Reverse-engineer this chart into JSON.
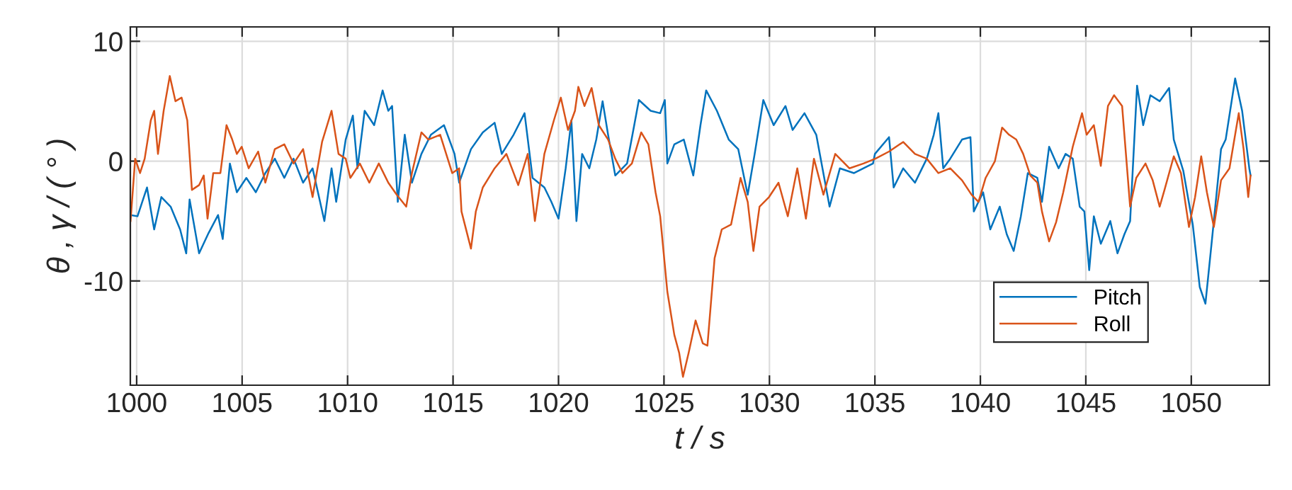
{
  "chart_data": {
    "type": "line",
    "xlabel": "t / s",
    "ylabel": "θ , γ / ( ° )",
    "xlim": [
      999.7,
      1053.7
    ],
    "ylim": [
      -18.7,
      11.2
    ],
    "xticks": [
      1000,
      1005,
      1010,
      1015,
      1020,
      1025,
      1030,
      1035,
      1040,
      1045,
      1050
    ],
    "yticks": [
      -10,
      0,
      10
    ],
    "grid": true,
    "legend": "bottom right",
    "marker": "none",
    "line_style": "solid",
    "series": [
      {
        "name": "Pitch",
        "color": "#0072bd",
        "x": [
          999.71,
          1000.04,
          1000.49,
          1000.83,
          1001.17,
          1001.61,
          1002.06,
          1002.35,
          1002.51,
          1002.96,
          1003.41,
          1003.86,
          1004.08,
          1004.42,
          1004.75,
          1005.2,
          1005.65,
          1006.1,
          1006.55,
          1007.0,
          1007.44,
          1007.89,
          1008.34,
          1008.9,
          1009.24,
          1009.46,
          1009.91,
          1010.25,
          1010.47,
          1010.81,
          1011.26,
          1011.66,
          1011.93,
          1012.11,
          1012.38,
          1012.71,
          1013.05,
          1013.5,
          1013.95,
          1014.57,
          1015.07,
          1015.29,
          1015.85,
          1016.41,
          1016.97,
          1017.31,
          1017.87,
          1018.39,
          1018.77,
          1019.33,
          1019.66,
          1020.0,
          1020.34,
          1020.61,
          1020.85,
          1021.12,
          1021.46,
          1021.79,
          1022.09,
          1022.35,
          1022.69,
          1023.25,
          1023.59,
          1023.81,
          1024.37,
          1024.82,
          1025.04,
          1025.16,
          1025.49,
          1025.94,
          1026.39,
          1026.73,
          1027.0,
          1027.51,
          1028.07,
          1028.52,
          1028.97,
          1029.3,
          1029.71,
          1030.2,
          1030.76,
          1031.1,
          1031.66,
          1032.22,
          1032.85,
          1033.34,
          1034.01,
          1034.91,
          1035.0,
          1035.67,
          1035.89,
          1036.34,
          1036.9,
          1037.46,
          1037.79,
          1038.01,
          1038.24,
          1038.57,
          1039.13,
          1039.53,
          1039.69,
          1040.13,
          1040.47,
          1040.92,
          1041.25,
          1041.58,
          1041.92,
          1042.25,
          1042.7,
          1042.92,
          1043.26,
          1043.71,
          1044.04,
          1044.38,
          1044.71,
          1044.93,
          1045.16,
          1045.38,
          1045.71,
          1046.16,
          1046.5,
          1046.83,
          1047.1,
          1047.43,
          1047.72,
          1048.06,
          1048.5,
          1048.95,
          1049.17,
          1049.62,
          1050.07,
          1050.4,
          1050.67,
          1050.96,
          1051.41,
          1051.63,
          1052.08,
          1052.41,
          1052.75,
          1052.81
        ],
        "values": [
          -4.5,
          -4.6,
          -2.2,
          -5.7,
          -3.0,
          -3.8,
          -5.7,
          -7.7,
          -3.2,
          -7.7,
          -6.0,
          -4.5,
          -6.5,
          -0.2,
          -2.6,
          -1.4,
          -2.6,
          -1.0,
          0.2,
          -1.4,
          0.2,
          -1.8,
          -0.6,
          -5.0,
          -0.6,
          -3.4,
          1.8,
          3.8,
          -0.6,
          4.2,
          3.0,
          5.9,
          4.2,
          4.6,
          -3.4,
          2.2,
          -1.8,
          0.6,
          2.2,
          3.0,
          0.6,
          -1.8,
          1.0,
          2.4,
          3.2,
          0.6,
          2.2,
          4.0,
          -1.4,
          -2.2,
          -3.4,
          -4.8,
          -0.6,
          3.4,
          -5.0,
          0.6,
          -0.6,
          1.8,
          5.0,
          2.2,
          -1.2,
          -0.2,
          3.0,
          5.1,
          4.2,
          4.0,
          5.1,
          -0.2,
          1.4,
          1.8,
          -1.2,
          3.0,
          5.9,
          4.2,
          1.8,
          1.0,
          -2.8,
          0.6,
          5.1,
          3.0,
          4.6,
          2.6,
          4.0,
          2.2,
          -3.8,
          -0.6,
          -1.0,
          -0.2,
          0.6,
          2.0,
          -2.2,
          -0.6,
          -1.8,
          0.2,
          2.2,
          4.0,
          -0.6,
          0.2,
          1.8,
          2.0,
          -4.2,
          -2.6,
          -5.7,
          -3.8,
          -6.1,
          -7.5,
          -4.6,
          -1.0,
          -1.4,
          -3.4,
          1.2,
          -0.6,
          0.6,
          0.2,
          -3.8,
          -4.2,
          -9.1,
          -4.6,
          -6.9,
          -5.0,
          -7.7,
          -6.1,
          -5.0,
          6.3,
          3.0,
          5.5,
          5.0,
          6.1,
          1.8,
          -0.8,
          -5.3,
          -10.5,
          -11.9,
          -6.9,
          1.0,
          1.8,
          6.9,
          4.2,
          -0.6,
          -1.2
        ]
      },
      {
        "name": "Roll",
        "color": "#d95319",
        "x": [
          999.71,
          999.93,
          1000.16,
          1000.38,
          1000.67,
          1000.83,
          1001.01,
          1001.28,
          1001.57,
          1001.84,
          1002.13,
          1002.4,
          1002.62,
          1002.96,
          1003.18,
          1003.36,
          1003.63,
          1003.97,
          1004.26,
          1004.53,
          1004.75,
          1004.98,
          1005.31,
          1005.76,
          1006.1,
          1006.55,
          1007.0,
          1007.44,
          1007.89,
          1008.34,
          1008.79,
          1009.24,
          1009.57,
          1009.91,
          1010.13,
          1010.58,
          1011.03,
          1011.48,
          1011.93,
          1012.33,
          1012.78,
          1013.05,
          1013.5,
          1013.83,
          1014.39,
          1014.96,
          1015.29,
          1015.4,
          1015.85,
          1016.08,
          1016.41,
          1016.97,
          1017.53,
          1018.09,
          1018.54,
          1018.88,
          1019.33,
          1019.78,
          1020.11,
          1020.45,
          1020.78,
          1020.94,
          1021.23,
          1021.57,
          1021.91,
          1022.35,
          1022.69,
          1023.03,
          1023.48,
          1023.92,
          1024.26,
          1024.6,
          1024.82,
          1025.16,
          1025.49,
          1025.72,
          1025.9,
          1026.17,
          1026.5,
          1026.84,
          1027.06,
          1027.4,
          1027.74,
          1028.18,
          1028.63,
          1028.97,
          1029.24,
          1029.53,
          1029.98,
          1030.43,
          1030.87,
          1031.32,
          1031.73,
          1032.11,
          1032.56,
          1033.12,
          1033.79,
          1034.46,
          1035.02,
          1035.67,
          1036.34,
          1036.9,
          1037.46,
          1038.01,
          1038.57,
          1039.13,
          1039.58,
          1039.91,
          1040.25,
          1040.69,
          1041.03,
          1041.36,
          1041.7,
          1042.03,
          1042.37,
          1042.7,
          1042.92,
          1043.26,
          1043.59,
          1043.93,
          1044.38,
          1044.82,
          1045.04,
          1045.38,
          1045.71,
          1046.05,
          1046.34,
          1046.72,
          1047.1,
          1047.39,
          1047.83,
          1048.17,
          1048.5,
          1048.73,
          1049.17,
          1049.51,
          1049.89,
          1050.18,
          1050.47,
          1050.74,
          1051.07,
          1051.41,
          1051.81,
          1052.25,
          1052.48,
          1052.7,
          1052.81
        ],
        "values": [
          -5.0,
          0.2,
          -1.0,
          0.2,
          3.4,
          4.2,
          0.6,
          4.2,
          7.1,
          5.0,
          5.3,
          3.4,
          -2.4,
          -2.0,
          -1.2,
          -4.8,
          -1.0,
          -1.0,
          3.0,
          1.8,
          0.6,
          1.2,
          -0.6,
          0.8,
          -1.8,
          1.0,
          1.4,
          -0.2,
          1.0,
          -3.0,
          1.6,
          4.2,
          0.6,
          0.2,
          -1.4,
          -0.2,
          -1.8,
          -0.2,
          -1.8,
          -2.8,
          -3.8,
          -1.0,
          2.4,
          1.8,
          2.2,
          -1.0,
          -0.6,
          -4.2,
          -7.3,
          -4.2,
          -2.2,
          -0.6,
          0.6,
          -2.0,
          0.6,
          -5.0,
          0.6,
          3.4,
          5.3,
          2.6,
          4.2,
          6.2,
          4.6,
          6.1,
          3.0,
          1.8,
          0.2,
          -1.0,
          -0.2,
          2.4,
          1.4,
          -2.6,
          -4.6,
          -10.9,
          -14.5,
          -16.0,
          -18.0,
          -16.0,
          -13.3,
          -15.2,
          -15.4,
          -8.1,
          -5.7,
          -5.3,
          -1.4,
          -3.4,
          -7.5,
          -3.8,
          -3.0,
          -1.8,
          -4.6,
          -0.6,
          -4.8,
          0.2,
          -2.8,
          0.6,
          -0.6,
          -0.2,
          0.2,
          0.8,
          1.6,
          0.6,
          0.2,
          -1.0,
          -0.6,
          -1.6,
          -2.8,
          -3.4,
          -1.4,
          0.0,
          2.8,
          2.2,
          1.8,
          0.6,
          -1.2,
          -1.8,
          -4.2,
          -6.7,
          -5.1,
          -2.6,
          1.2,
          4.0,
          2.2,
          3.0,
          -0.4,
          4.6,
          5.5,
          4.6,
          -3.8,
          -1.4,
          -0.2,
          -1.6,
          -3.8,
          -2.4,
          0.4,
          -1.0,
          -5.5,
          -3.0,
          0.4,
          -2.6,
          -5.5,
          -1.6,
          -0.6,
          4.0,
          1.0,
          -3.0,
          -1.2
        ]
      }
    ]
  }
}
